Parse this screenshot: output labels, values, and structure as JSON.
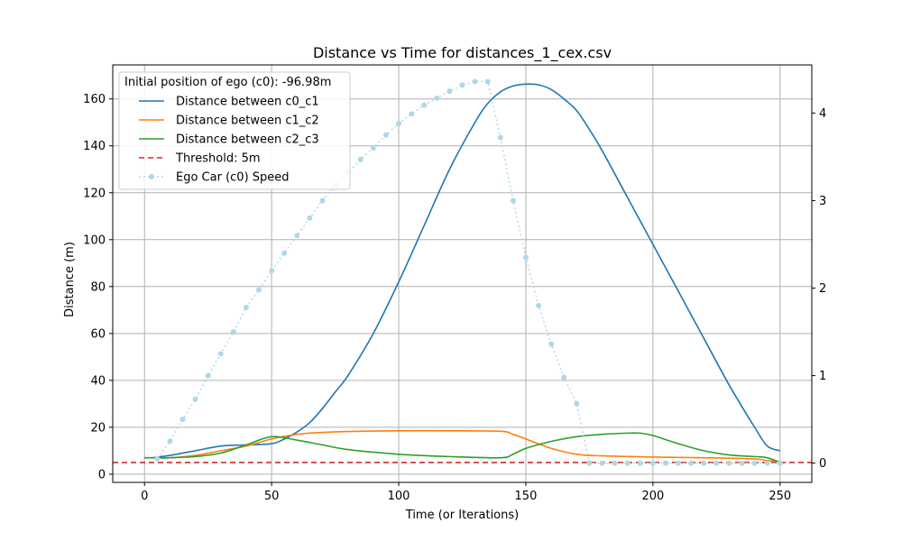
{
  "chart_data": {
    "type": "line",
    "title": "Distance vs Time for distances_1_cex.csv",
    "xlabel": "Time (or Iterations)",
    "ylabel": "Distance (m)",
    "y2label": "",
    "xlim": [
      -12.5,
      262.5
    ],
    "ylim": [
      -3.5,
      174.5
    ],
    "y2lim": [
      -0.22,
      4.55
    ],
    "xticks": [
      0,
      50,
      100,
      150,
      200,
      250
    ],
    "yticks": [
      0,
      20,
      40,
      60,
      80,
      100,
      120,
      140,
      160
    ],
    "y2ticks": [
      0,
      1,
      2,
      3,
      4
    ],
    "grid": true,
    "legend": {
      "title": "Initial position of ego (c0): -96.98m",
      "placement": "top-left"
    },
    "series": [
      {
        "name": "Distance between c0_c1",
        "color": "#1f77b4",
        "style": "solid",
        "axis": "left",
        "x": [
          3,
          10,
          20,
          30,
          40,
          50,
          55,
          60,
          65,
          70,
          75,
          80,
          90,
          100,
          110,
          120,
          130,
          135,
          140,
          145,
          150,
          155,
          160,
          165,
          170,
          175,
          180,
          190,
          200,
          210,
          220,
          230,
          240,
          245,
          250
        ],
        "y": [
          7,
          8,
          10,
          12,
          12.5,
          13,
          15,
          18,
          22,
          28,
          35,
          42,
          60,
          82,
          106,
          130,
          150,
          158,
          163,
          165.5,
          166.3,
          166,
          164,
          160,
          155,
          147,
          138,
          118,
          98,
          78,
          58,
          38,
          20,
          12,
          10
        ]
      },
      {
        "name": "Distance between c1_c2",
        "color": "#ff7f0e",
        "style": "solid",
        "axis": "left",
        "x": [
          0,
          10,
          20,
          30,
          40,
          50,
          60,
          70,
          80,
          100,
          120,
          140,
          145,
          150,
          160,
          170,
          180,
          200,
          220,
          240,
          245,
          250
        ],
        "y": [
          7,
          7,
          8,
          10,
          12,
          15,
          17,
          17.8,
          18.2,
          18.5,
          18.5,
          18.3,
          17,
          15,
          11,
          8.5,
          7.8,
          7.3,
          7,
          6.5,
          5.8,
          5.5
        ]
      },
      {
        "name": "Distance between c2_c3",
        "color": "#2ca02c",
        "style": "solid",
        "axis": "left",
        "x": [
          0,
          10,
          20,
          30,
          40,
          50,
          60,
          70,
          80,
          100,
          120,
          140,
          145,
          150,
          160,
          170,
          180,
          190,
          195,
          200,
          210,
          220,
          230,
          240,
          245,
          250
        ],
        "y": [
          7,
          7,
          7.5,
          9,
          12.5,
          16,
          14.5,
          12.5,
          10.5,
          8.5,
          7.5,
          7,
          8.5,
          11,
          14,
          16,
          17,
          17.5,
          17.5,
          16.5,
          13,
          10,
          8.2,
          7.5,
          7,
          5
        ]
      },
      {
        "name": "Threshold: 5m",
        "color": "#d62728",
        "style": "dashed",
        "axis": "left",
        "x": [
          -12.5,
          262.5
        ],
        "y": [
          5,
          5
        ]
      },
      {
        "name": "Ego Car (c0) Speed",
        "color": "#add8e6",
        "style": "dotted-markers",
        "axis": "right",
        "x": [
          5,
          10,
          15,
          20,
          25,
          30,
          35,
          40,
          45,
          50,
          55,
          60,
          65,
          70,
          75,
          80,
          85,
          90,
          95,
          100,
          105,
          110,
          115,
          120,
          125,
          130,
          135,
          140,
          145,
          150,
          155,
          160,
          165,
          170,
          175,
          180,
          185,
          190,
          195,
          200,
          205,
          210,
          215,
          220,
          225,
          230,
          235,
          240,
          245,
          250
        ],
        "y": [
          0.05,
          0.25,
          0.5,
          0.73,
          1.0,
          1.25,
          1.5,
          1.78,
          1.98,
          2.2,
          2.4,
          2.6,
          2.8,
          3.0,
          3.17,
          3.32,
          3.47,
          3.6,
          3.75,
          3.88,
          3.99,
          4.09,
          4.17,
          4.25,
          4.32,
          4.36,
          4.36,
          3.72,
          3.0,
          2.35,
          1.8,
          1.36,
          0.98,
          0.68,
          0.0,
          0.0,
          0.0,
          0.0,
          0.0,
          0.0,
          0.0,
          0.0,
          0.0,
          0.0,
          0.0,
          0.0,
          0.0,
          0.0,
          0.0,
          0.0
        ]
      }
    ]
  }
}
